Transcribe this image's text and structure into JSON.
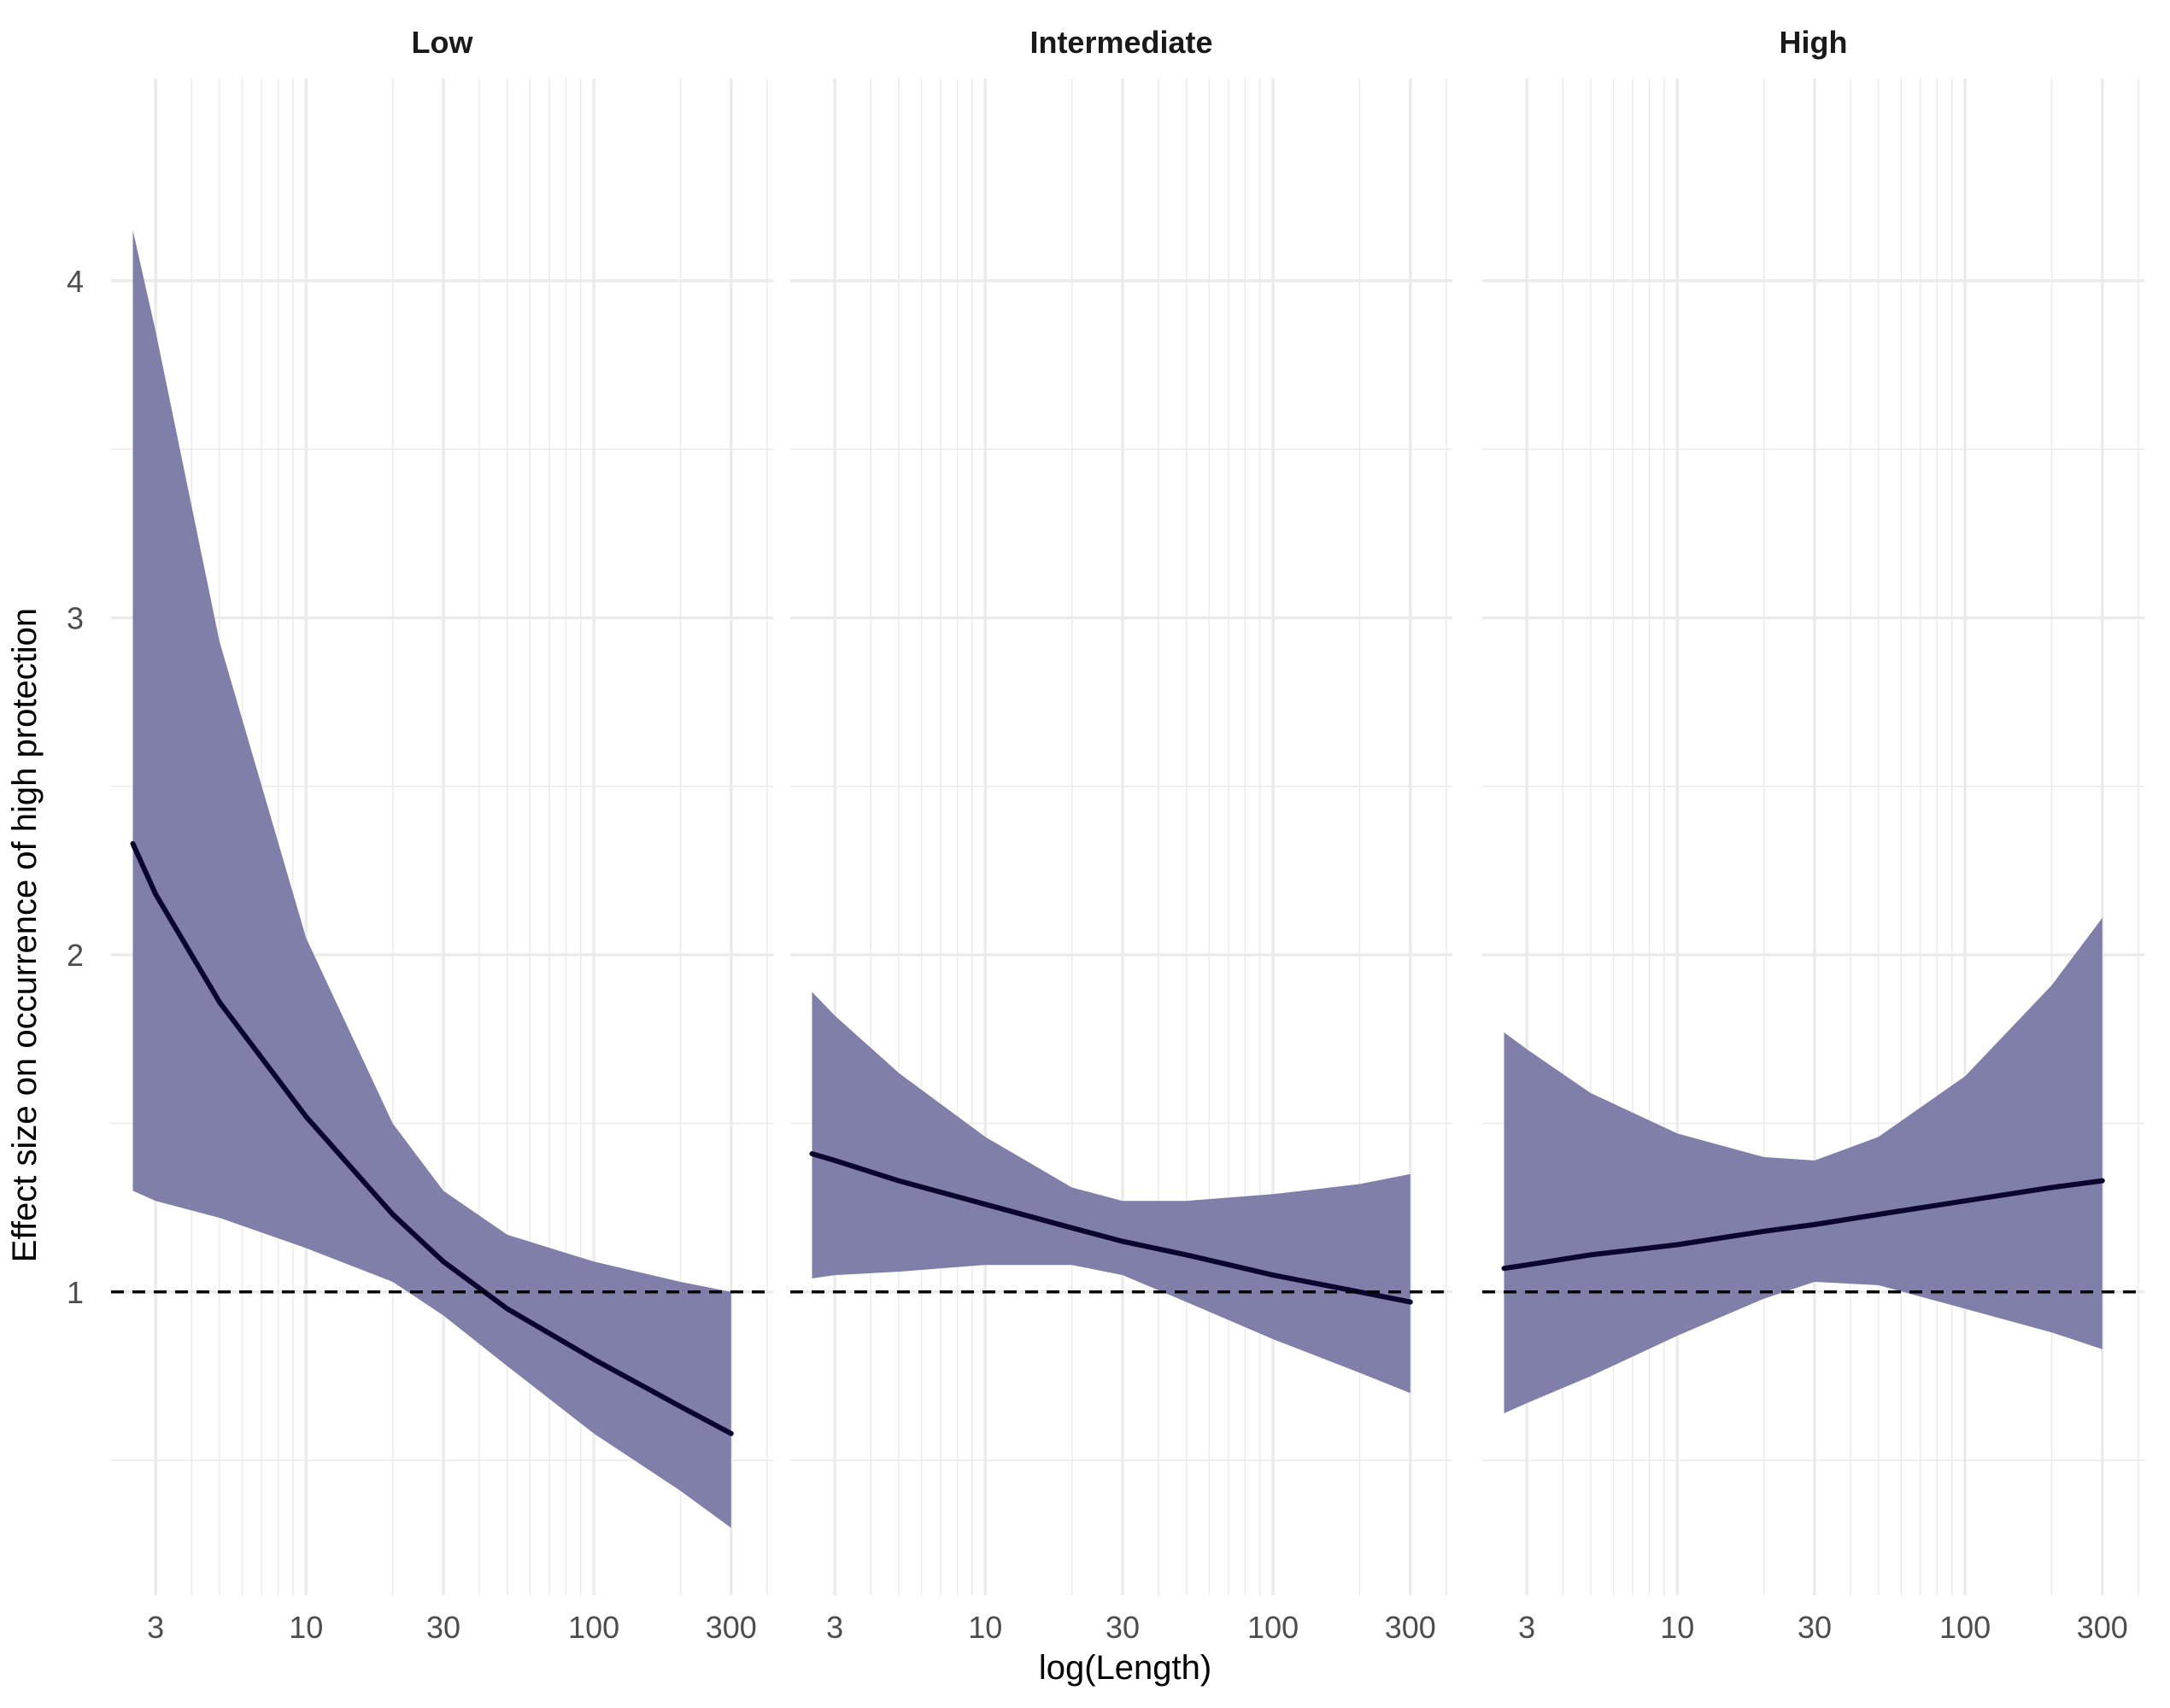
{
  "chart_data": {
    "type": "line",
    "facets": [
      "Low",
      "Intermediate",
      "High"
    ],
    "xlabel": "log(Length)",
    "ylabel": "Effect size on occurrence of high protection",
    "x_scale": "log10",
    "xlim": [
      2.1,
      420
    ],
    "ylim": [
      0.1,
      4.6
    ],
    "x_ticks": [
      3,
      10,
      30,
      100,
      300
    ],
    "x_tick_labels": [
      "3",
      "10",
      "30",
      "100",
      "300"
    ],
    "y_ticks": [
      1,
      2,
      3,
      4
    ],
    "y_tick_labels": [
      "1",
      "2",
      "3",
      "4"
    ],
    "reference_line": 1,
    "grid": true,
    "colors": {
      "ribbon": "#7f7faa",
      "line": "#0b0630",
      "grid": "#ebebeb",
      "reference": "#000000"
    },
    "series": [
      {
        "facet": "Low",
        "x": [
          2.5,
          3,
          5,
          10,
          20,
          30,
          50,
          100,
          200,
          300
        ],
        "fit": [
          2.33,
          2.18,
          1.86,
          1.52,
          1.23,
          1.09,
          0.95,
          0.8,
          0.66,
          0.58
        ],
        "lower": [
          1.3,
          1.27,
          1.22,
          1.13,
          1.03,
          0.93,
          0.78,
          0.58,
          0.41,
          0.3
        ],
        "upper": [
          4.15,
          3.85,
          2.93,
          2.05,
          1.5,
          1.3,
          1.17,
          1.09,
          1.03,
          1.0
        ]
      },
      {
        "facet": "Intermediate",
        "x": [
          2.5,
          3,
          5,
          10,
          20,
          30,
          50,
          100,
          200,
          300
        ],
        "fit": [
          1.41,
          1.39,
          1.33,
          1.26,
          1.19,
          1.15,
          1.11,
          1.05,
          1.0,
          0.97
        ],
        "lower": [
          1.04,
          1.05,
          1.06,
          1.08,
          1.08,
          1.05,
          0.97,
          0.86,
          0.76,
          0.7
        ],
        "upper": [
          1.89,
          1.82,
          1.65,
          1.46,
          1.31,
          1.27,
          1.27,
          1.29,
          1.32,
          1.35
        ]
      },
      {
        "facet": "High",
        "x": [
          2.5,
          3,
          5,
          10,
          20,
          30,
          50,
          100,
          200,
          300
        ],
        "fit": [
          1.07,
          1.08,
          1.11,
          1.14,
          1.18,
          1.2,
          1.23,
          1.27,
          1.31,
          1.33
        ],
        "lower": [
          0.64,
          0.67,
          0.75,
          0.87,
          0.98,
          1.03,
          1.02,
          0.95,
          0.88,
          0.83
        ],
        "upper": [
          1.77,
          1.72,
          1.59,
          1.47,
          1.4,
          1.39,
          1.46,
          1.64,
          1.91,
          2.11
        ]
      }
    ]
  }
}
